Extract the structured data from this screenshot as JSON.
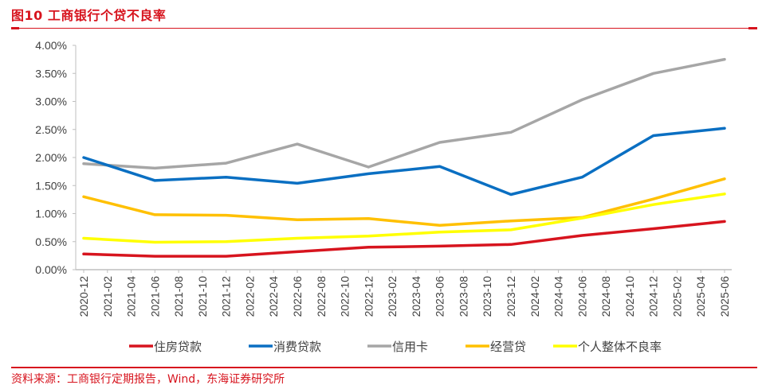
{
  "header": {
    "title": "图10  工商银行个贷不良率"
  },
  "footer": {
    "source": "资料来源：工商银行定期报告，Wind，东海证券研究所"
  },
  "chart_data": {
    "type": "line",
    "title": "工商银行个贷不良率",
    "xlabel": "",
    "ylabel": "",
    "ylim": [
      0,
      4.0
    ],
    "y_unit": "%",
    "y_ticks": [
      "0.00%",
      "0.50%",
      "1.00%",
      "1.50%",
      "2.00%",
      "2.50%",
      "3.00%",
      "3.50%",
      "4.00%"
    ],
    "y_tick_values": [
      0,
      0.5,
      1.0,
      1.5,
      2.0,
      2.5,
      3.0,
      3.5,
      4.0
    ],
    "x_ticks": [
      "2020-12",
      "2021-02",
      "2021-04",
      "2021-06",
      "2021-08",
      "2021-10",
      "2021-12",
      "2022-02",
      "2022-04",
      "2022-06",
      "2022-08",
      "2022-10",
      "2022-12",
      "2023-02",
      "2023-04",
      "2023-06",
      "2023-08",
      "2023-10",
      "2023-12",
      "2024-02",
      "2024-04",
      "2024-06",
      "2024-08",
      "2024-10",
      "2024-12",
      "2025-02",
      "2025-04",
      "2025-06"
    ],
    "x": [
      "2020-12",
      "2021-06",
      "2021-12",
      "2022-06",
      "2022-12",
      "2023-06",
      "2023-12",
      "2024-06",
      "2024-12",
      "2025-06"
    ],
    "grid": false,
    "legend_position": "bottom",
    "series": [
      {
        "name": "住房贷款",
        "color": "#d7141e",
        "values": [
          0.28,
          0.24,
          0.24,
          0.32,
          0.4,
          0.42,
          0.45,
          0.61,
          0.73,
          0.86
        ]
      },
      {
        "name": "消费贷款",
        "color": "#0a6fc2",
        "values": [
          2.0,
          1.59,
          1.65,
          1.54,
          1.71,
          1.84,
          1.34,
          1.65,
          2.39,
          2.52
        ]
      },
      {
        "name": "信用卡",
        "color": "#a6a6a6",
        "values": [
          1.89,
          1.81,
          1.9,
          2.24,
          1.83,
          2.27,
          2.45,
          3.03,
          3.5,
          3.75
        ]
      },
      {
        "name": "经营贷",
        "color": "#ffc000",
        "values": [
          1.3,
          0.98,
          0.97,
          0.89,
          0.91,
          0.79,
          0.87,
          0.93,
          1.26,
          1.62
        ]
      },
      {
        "name": "个人整体不良率",
        "color": "#ffff00",
        "values": [
          0.56,
          0.49,
          0.5,
          0.56,
          0.6,
          0.67,
          0.71,
          0.92,
          1.16,
          1.35
        ]
      }
    ]
  }
}
